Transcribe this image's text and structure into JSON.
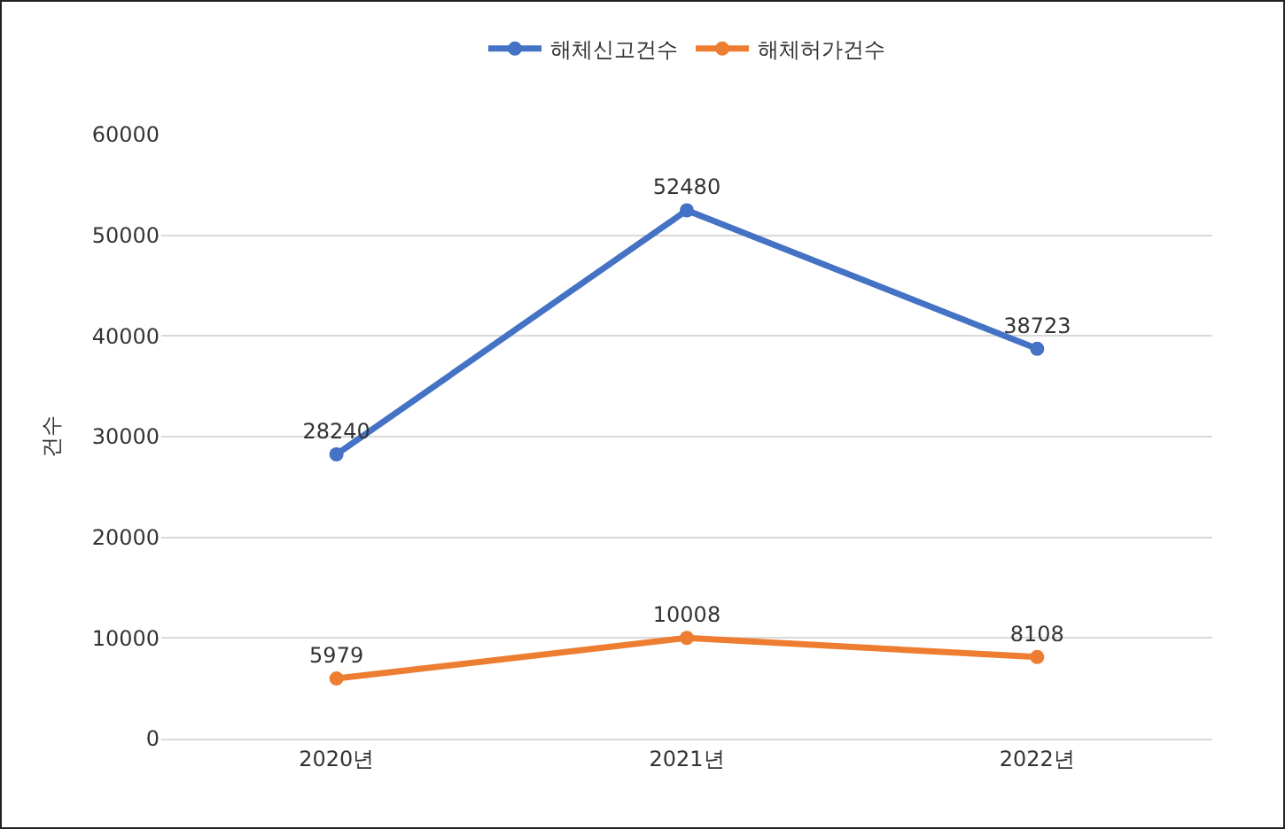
{
  "chart_data": {
    "type": "line",
    "ylabel": "건수",
    "categories": [
      "2020년",
      "2021년",
      "2022년"
    ],
    "series": [
      {
        "name": "해체신고건수",
        "color": "#4472c4",
        "values": [
          28240,
          52480,
          38723
        ]
      },
      {
        "name": "해체허가건수",
        "color": "#ed7d31",
        "values": [
          5979,
          10008,
          8108
        ]
      }
    ],
    "ylim": [
      0,
      60000
    ],
    "yticks": [
      0,
      10000,
      20000,
      30000,
      40000,
      50000,
      60000
    ],
    "grid": "y",
    "legend": "top",
    "marker": "circle",
    "line_style": "solid",
    "data_labels": true
  }
}
